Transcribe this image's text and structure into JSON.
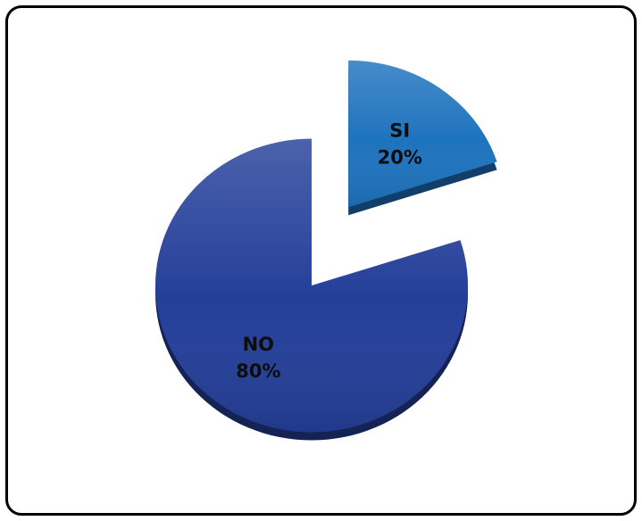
{
  "chart_data": {
    "type": "pie",
    "style": "3d-exploded",
    "title": "",
    "slices": [
      {
        "category": "SI",
        "value": 20,
        "percent_label": "20%",
        "color": "#1e73be",
        "exploded": true
      },
      {
        "category": "NO",
        "value": 80,
        "percent_label": "80%",
        "color": "#243f99",
        "exploded": false
      }
    ],
    "start_angle_deg": 0,
    "direction": "clockwise",
    "legend": "none"
  }
}
